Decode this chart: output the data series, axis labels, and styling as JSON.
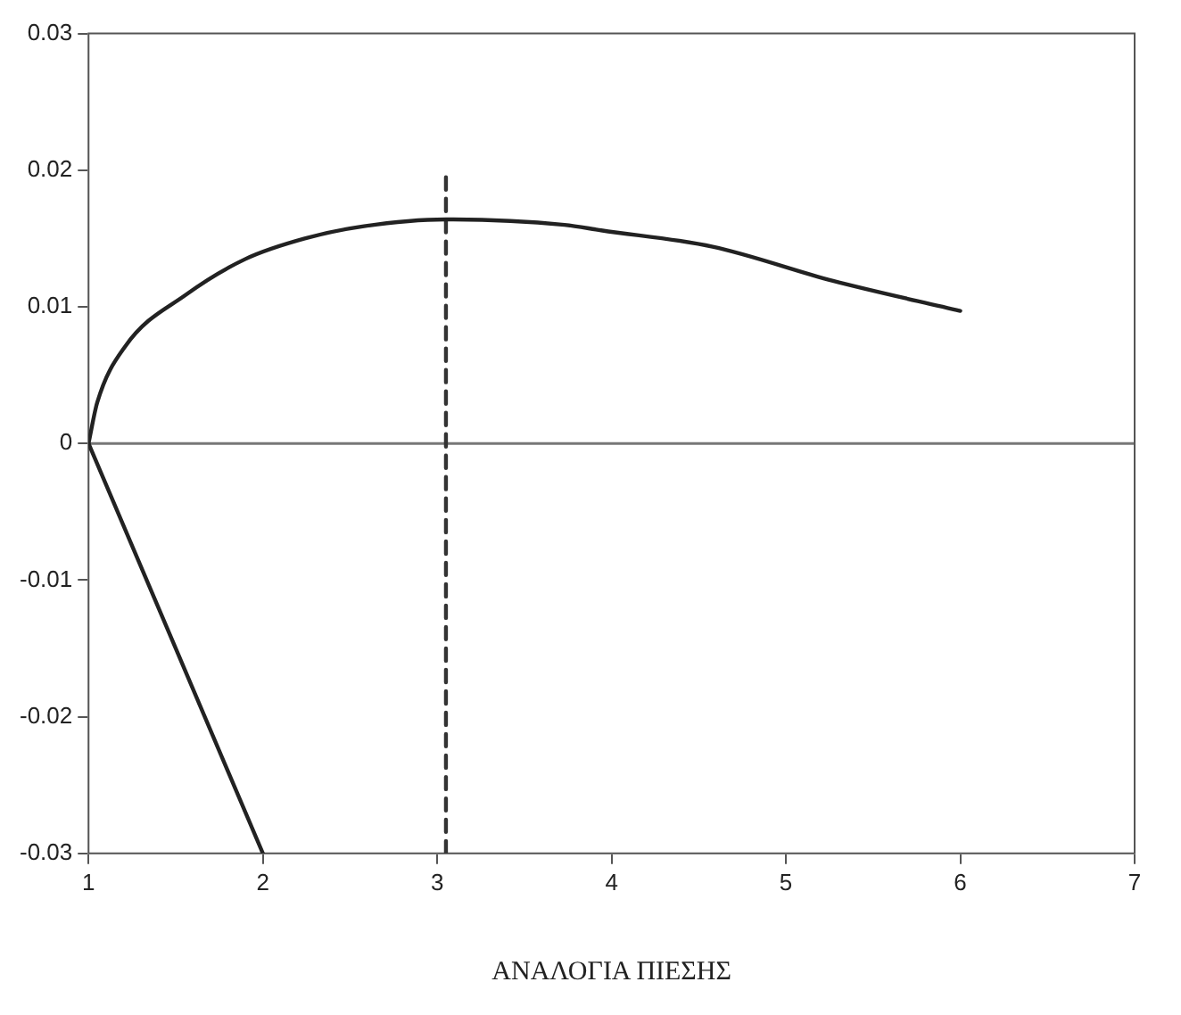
{
  "chart_data": {
    "type": "line",
    "xlabel": "ΑΝΑΛΟΓΙΑ ΠΙΕΣΗΣ",
    "xlim": [
      1,
      7
    ],
    "xticks": [
      1,
      2,
      3,
      4,
      5,
      6,
      7
    ],
    "ylim": [
      -0.03,
      0.03
    ],
    "yticks": [
      -0.03,
      -0.02,
      -0.01,
      0,
      0.01,
      0.02,
      0.03
    ],
    "grid": false,
    "legend": false,
    "marker": "none",
    "series": [
      {
        "color": "#222222",
        "x": [
          1,
          1.05,
          1.21,
          1.56,
          1.9,
          2.24,
          2.58,
          3.05,
          3.73,
          3.94,
          4.58,
          5.27,
          6
        ],
        "values": [
          0,
          0.003,
          0.0071,
          0.0109,
          0.0135,
          0.015,
          0.0159,
          0.0164,
          0.016,
          0.0156,
          0.0144,
          0.0119,
          0.0097
        ]
      },
      {
        "color": "#222222",
        "x": [
          1,
          2
        ],
        "values": [
          0,
          -0.03
        ]
      },
      {
        "color": "#333333",
        "x": [
          3.05,
          3.05
        ],
        "values": [
          -0.03,
          0.0195
        ],
        "line_style": "dashed"
      }
    ],
    "ref_lines": [
      {
        "axis": "y",
        "value": 0,
        "color": "#777777",
        "line_style": "solid"
      }
    ]
  }
}
